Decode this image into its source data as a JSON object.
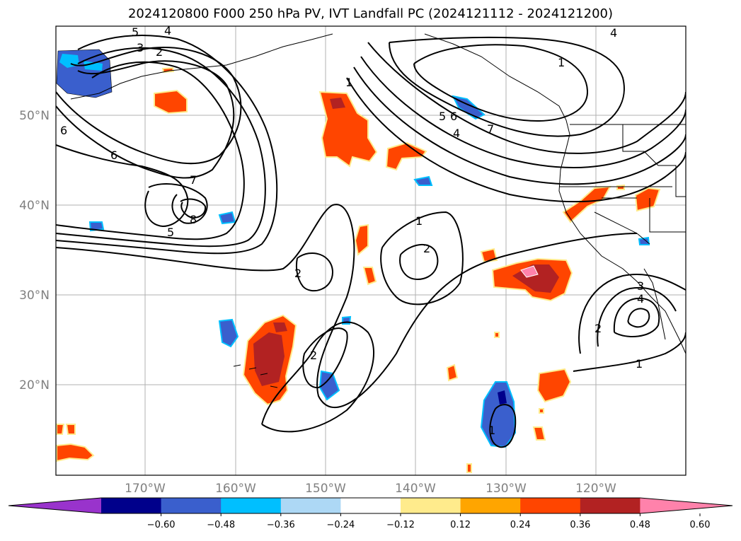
{
  "title": "2024120800 F000 250 hPa PV, IVT Landfall PC (2024121112 - 2024121200)",
  "map": {
    "lat_labels": [
      "50°N",
      "40°N",
      "30°N",
      "20°N"
    ],
    "lon_labels": [
      "170°W",
      "160°W",
      "150°W",
      "140°W",
      "130°W",
      "120°W"
    ],
    "contour_labels": [
      "5",
      "4",
      "3",
      "2",
      "6",
      "6",
      "7",
      "8",
      "5",
      "1",
      "1",
      "2",
      "2",
      "2",
      "5",
      "6",
      "4",
      "7",
      "4",
      "1",
      "3",
      "4",
      "2",
      "1",
      "1"
    ],
    "colors": {
      "deep_purple": "#9933cc",
      "navy": "#00008b",
      "royal_blue": "#3a5fcd",
      "deep_sky_blue": "#00bfff",
      "light_blue": "#add8f5",
      "white": "#ffffff",
      "light_yellow": "#ffeb8c",
      "orange": "#ffa500",
      "orange_red": "#ff4500",
      "firebrick": "#b22222",
      "pink": "#ff82ab"
    }
  },
  "colorbar": {
    "tick_labels": [
      "−0.60",
      "−0.48",
      "−0.36",
      "−0.24",
      "−0.12",
      "0.12",
      "0.24",
      "0.36",
      "0.48",
      "0.60"
    ],
    "bins": [
      "#9933cc",
      "#00008b",
      "#3a5fcd",
      "#00bfff",
      "#add8f5",
      "#ffffff",
      "#ffeb8c",
      "#ffa500",
      "#ff4500",
      "#b22222",
      "#ff82ab"
    ]
  }
}
